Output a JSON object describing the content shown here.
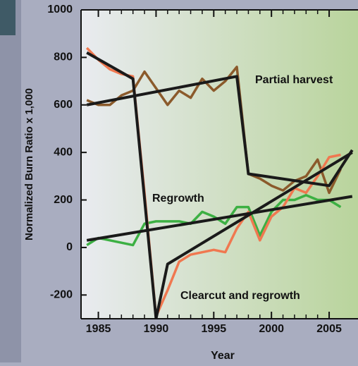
{
  "chart_data": {
    "type": "line",
    "xlabel": "Year",
    "ylabel": "Normalized Burn Ratio x 1,000",
    "x": [
      1984,
      1985,
      1986,
      1987,
      1988,
      1989,
      1990,
      1991,
      1992,
      1993,
      1994,
      1995,
      1996,
      1997,
      1998,
      1999,
      2000,
      2001,
      2002,
      2003,
      2004,
      2005,
      2006
    ],
    "series": [
      {
        "name": "Partial harvest",
        "color": "#8b5a2b",
        "values": [
          620,
          600,
          600,
          640,
          660,
          740,
          670,
          600,
          660,
          630,
          710,
          660,
          700,
          760,
          310,
          290,
          260,
          240,
          280,
          300,
          370,
          230,
          330
        ],
        "fit": {
          "x": [
            1984,
            1997,
            1998,
            2005,
            2007
          ],
          "values": [
            600,
            720,
            310,
            260,
            410
          ]
        }
      },
      {
        "name": "Regrowth",
        "color": "#3cb043",
        "values": [
          10,
          40,
          30,
          20,
          10,
          100,
          110,
          110,
          110,
          100,
          150,
          130,
          100,
          170,
          170,
          50,
          150,
          200,
          200,
          220,
          200,
          200,
          170
        ],
        "fit": {
          "x": [
            1984,
            2007
          ],
          "values": [
            30,
            215
          ]
        }
      },
      {
        "name": "Clearcut and regrowth",
        "color": "#f07850",
        "values": [
          840,
          790,
          750,
          730,
          720,
          230,
          -290,
          -180,
          -60,
          -30,
          -20,
          -10,
          -20,
          80,
          150,
          30,
          130,
          170,
          250,
          230,
          300,
          380,
          390
        ],
        "fit": {
          "x": [
            1984,
            1988,
            1990,
            1991,
            2007
          ],
          "values": [
            820,
            710,
            -300,
            -70,
            400
          ]
        }
      }
    ],
    "xlim": [
      1983.5,
      2007.5
    ],
    "xticks": [
      1985,
      1990,
      1995,
      2000,
      2005
    ],
    "ylim": [
      -300,
      1000
    ],
    "yticks": [
      -200,
      0,
      200,
      400,
      600,
      800,
      1000
    ]
  }
}
